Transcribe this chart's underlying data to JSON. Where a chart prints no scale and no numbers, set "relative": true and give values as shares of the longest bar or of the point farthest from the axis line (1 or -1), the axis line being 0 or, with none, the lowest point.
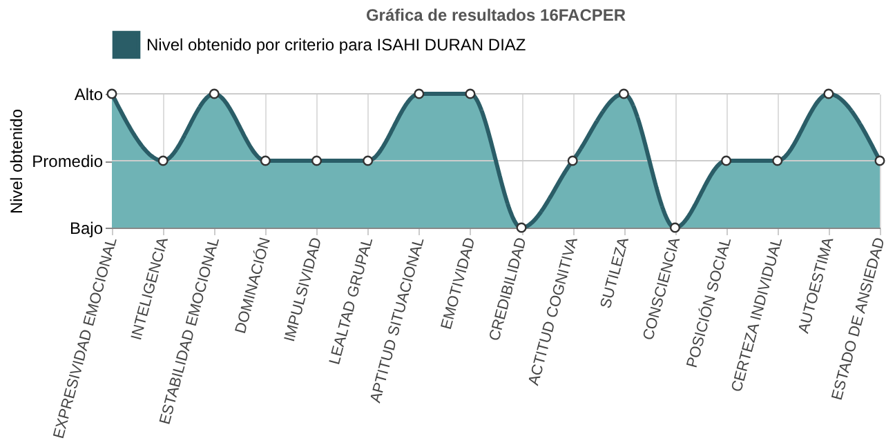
{
  "chart_data": {
    "type": "area",
    "title": "Gráfica de resultados 16FACPER",
    "ylabel": "Nivel obtenido",
    "relative": true,
    "categories": [
      "EXPRESIVIDAD EMOCIONAL",
      "INTELIGENCIA",
      "ESTABILIDAD EMOCIONAL",
      "DOMINACIÓN",
      "IMPULSIVIDAD",
      "LEALTAD GRUPAL",
      "APTITUD SITUACIONAL",
      "EMOTIVIDAD",
      "CREDIBILIDAD",
      "ACTITUD COGNITIVA",
      "SUTILEZA",
      "CONSCIENCIA",
      "POSICIÓN SOCIAL",
      "CERTEZA INDIVIDUAL",
      "AUTOESTIMA",
      "ESTADO DE ANSIEDAD"
    ],
    "series": [
      {
        "name": "Nivel obtenido por criterio para ISAHI DURAN DIAZ",
        "color": "#2a5d67",
        "values": [
          1,
          0.5,
          1,
          0.5,
          0.5,
          0.5,
          1,
          1,
          0,
          0.5,
          1,
          0,
          0.5,
          0.5,
          1,
          0.5
        ]
      }
    ],
    "annotations": [
      "Bajo",
      "Promedio",
      "Alto"
    ],
    "ref_lines": [
      {
        "axis": "y",
        "value": 0.5,
        "color": "#cccccc"
      },
      {
        "axis": "y",
        "value": 1,
        "color": "#cccccc"
      }
    ],
    "grid": "x",
    "legend": "top",
    "marker": "circle",
    "line_style": "solid"
  }
}
